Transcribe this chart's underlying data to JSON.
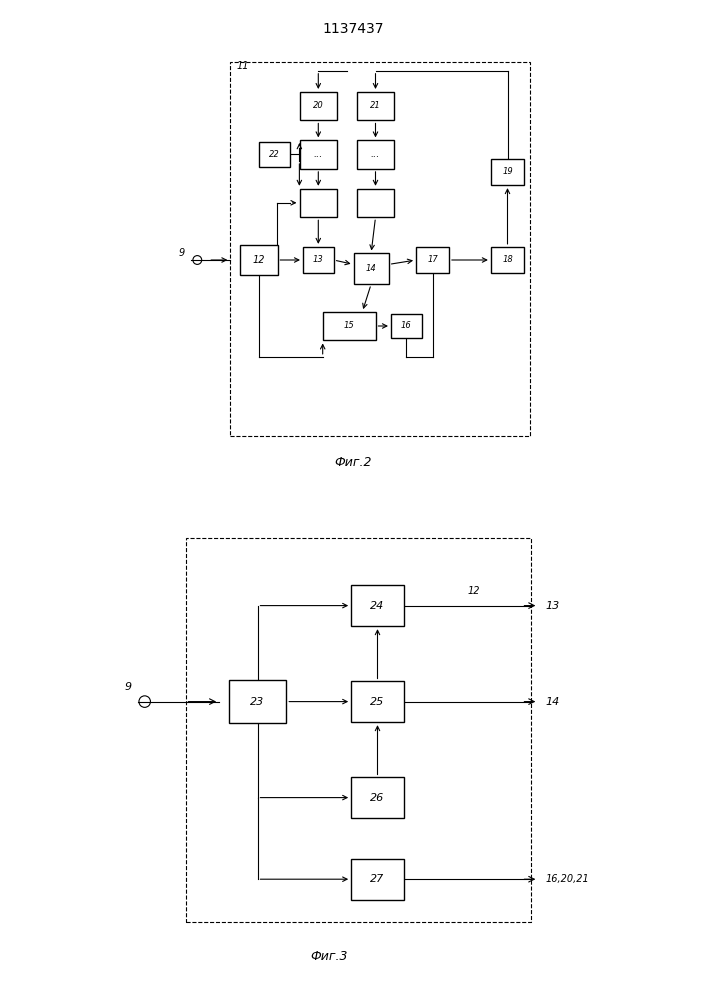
{
  "title": "1137437",
  "fig2_caption": "Фиг.2",
  "fig3_caption": "Фиг.3",
  "background": "#ffffff"
}
